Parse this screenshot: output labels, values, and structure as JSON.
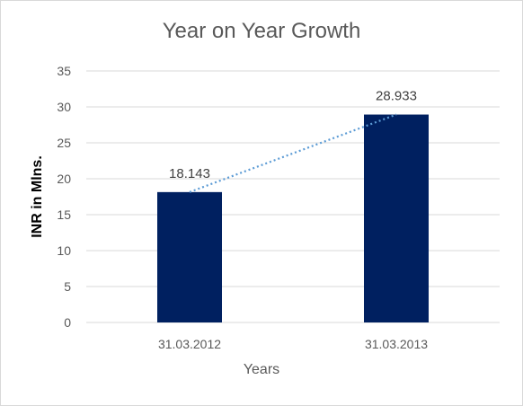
{
  "chart_data": {
    "type": "bar",
    "title": "Year on Year Growth",
    "xlabel": "Years",
    "ylabel": "INR in Mlns.",
    "categories": [
      "31.03.2012",
      "31.03.2013"
    ],
    "values": [
      18.143,
      28.933
    ],
    "data_labels": [
      "18.143",
      "28.933"
    ],
    "ylim": [
      0,
      35
    ],
    "y_ticks": [
      0,
      5,
      10,
      15,
      20,
      25,
      30,
      35
    ],
    "grid": true,
    "legend": "none",
    "trendline": {
      "type": "linear",
      "style": "dotted"
    },
    "colors": {
      "bar": "#002060",
      "trendline": "#5b9bd5",
      "grid": "#d9d9d9"
    }
  }
}
